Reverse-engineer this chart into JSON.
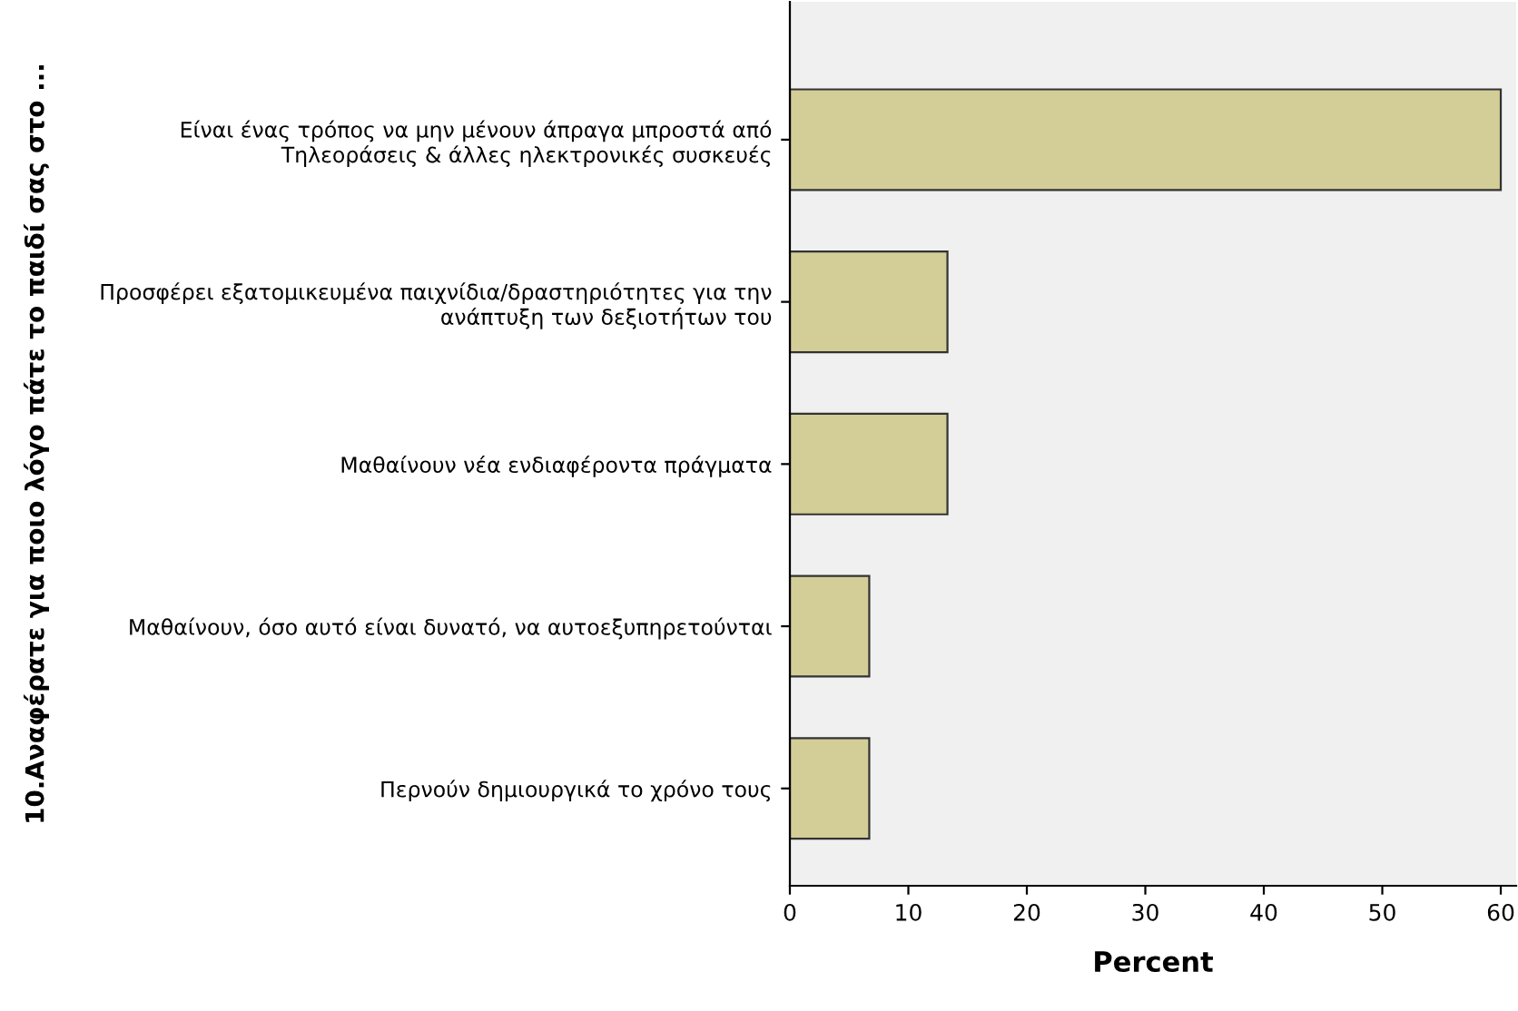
{
  "chart_data": {
    "type": "bar",
    "orientation": "horizontal",
    "xlabel": "Percent",
    "ylabel": "10.Αναφέρατε για ποιο λόγο πάτε το παιδί σας στο ...",
    "categories": [
      "Είναι ένας τρόπος να μην μένουν άπραγα μπροστά από\nΤηλεοράσεις & άλλες ηλεκτρονικές συσκευές",
      "Προσφέρει εξατομικευμένα παιχνίδια/δραστηριότητες για την\nανάπτυξη των δεξιοτήτων του",
      "Μαθαίνουν νέα ενδιαφέροντα πράγματα",
      "Μαθαίνουν, όσο αυτό είναι δυνατό, να αυτοεξυπηρετούνται",
      "Περνούν δημιουργικά το χρόνο τους"
    ],
    "values": [
      60,
      13.3,
      13.3,
      6.7,
      6.7
    ],
    "color": "#d3ce98",
    "xlim": [
      0,
      61.3
    ],
    "xticks": [
      0,
      10,
      20,
      30,
      40,
      50,
      60
    ],
    "grid": false
  }
}
